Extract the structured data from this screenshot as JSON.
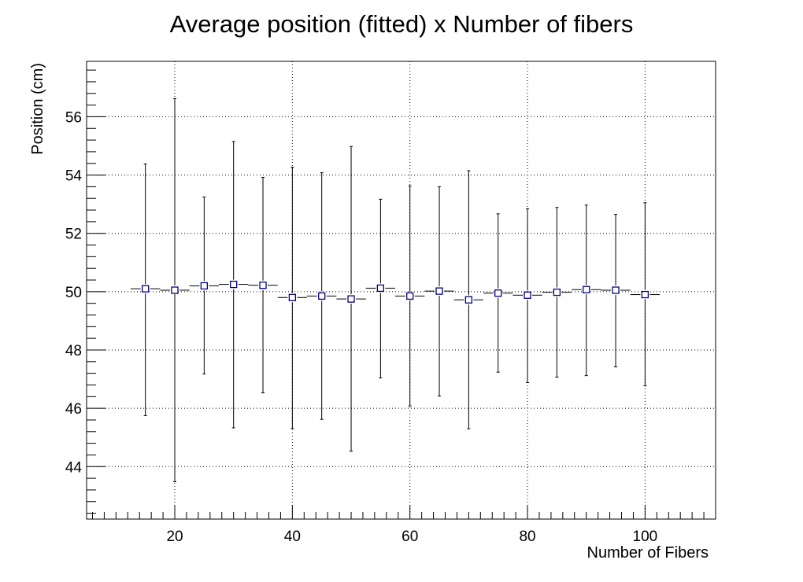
{
  "chart_data": {
    "type": "scatter",
    "title": "Average position (fitted) x Number of fibers",
    "xlabel": "Number of Fibers",
    "ylabel": "Position (cm)",
    "xlim": [
      5,
      112
    ],
    "ylim": [
      42.2,
      57.9
    ],
    "xticks": [
      20,
      40,
      60,
      80,
      100
    ],
    "yticks": [
      44,
      46,
      48,
      50,
      52,
      54,
      56
    ],
    "grid": true,
    "marker": "open-square",
    "marker_color": "#000080",
    "x_error": 2.5,
    "points": [
      {
        "x": 15,
        "y": 50.1,
        "y_low": 45.75,
        "y_high": 54.38
      },
      {
        "x": 20,
        "y": 50.05,
        "y_low": 43.48,
        "y_high": 56.62
      },
      {
        "x": 25,
        "y": 50.2,
        "y_low": 47.18,
        "y_high": 53.25
      },
      {
        "x": 30,
        "y": 50.25,
        "y_low": 45.33,
        "y_high": 55.15
      },
      {
        "x": 35,
        "y": 50.22,
        "y_low": 46.53,
        "y_high": 53.92
      },
      {
        "x": 40,
        "y": 49.8,
        "y_low": 45.31,
        "y_high": 54.27
      },
      {
        "x": 45,
        "y": 49.85,
        "y_low": 45.62,
        "y_high": 54.08
      },
      {
        "x": 50,
        "y": 49.75,
        "y_low": 44.53,
        "y_high": 54.98
      },
      {
        "x": 55,
        "y": 50.12,
        "y_low": 47.04,
        "y_high": 53.17
      },
      {
        "x": 60,
        "y": 49.85,
        "y_low": 46.08,
        "y_high": 53.63
      },
      {
        "x": 65,
        "y": 50.02,
        "y_low": 46.42,
        "y_high": 53.6
      },
      {
        "x": 70,
        "y": 49.72,
        "y_low": 45.3,
        "y_high": 54.15
      },
      {
        "x": 75,
        "y": 49.95,
        "y_low": 47.24,
        "y_high": 52.67
      },
      {
        "x": 80,
        "y": 49.88,
        "y_low": 46.88,
        "y_high": 52.84
      },
      {
        "x": 85,
        "y": 49.98,
        "y_low": 47.07,
        "y_high": 52.89
      },
      {
        "x": 90,
        "y": 50.07,
        "y_low": 47.12,
        "y_high": 52.97
      },
      {
        "x": 95,
        "y": 50.05,
        "y_low": 47.42,
        "y_high": 52.65
      },
      {
        "x": 100,
        "y": 49.9,
        "y_low": 46.77,
        "y_high": 53.05
      }
    ]
  }
}
